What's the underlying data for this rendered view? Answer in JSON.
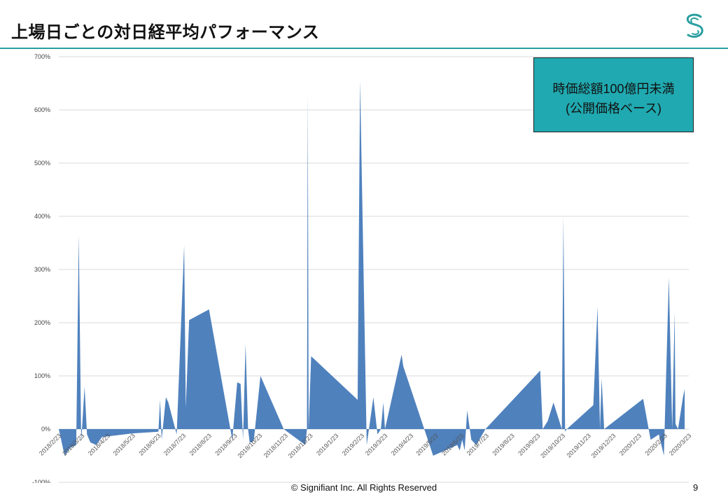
{
  "page": {
    "title": "上場日ごとの対日経平均パフォーマンス",
    "footer": "© Signifiant Inc. All Rights Reserved",
    "page_number": "9",
    "logo_icon": "signifiant-swirl-logo",
    "accent_color": "#2a9ea0"
  },
  "annotation": {
    "line1": "時価総額100億円未満",
    "line2": "(公開価格ベース)",
    "color": "#20a9b0"
  },
  "chart_data": {
    "type": "area",
    "title": "",
    "xlabel": "",
    "ylabel": "",
    "fill_color": "#4f81bd",
    "grid": true,
    "ylim": [
      -100,
      700
    ],
    "yticks": [
      -100,
      0,
      100,
      200,
      300,
      400,
      500,
      600,
      700
    ],
    "ytick_labels": [
      "-100%",
      "0%",
      "100%",
      "200%",
      "300%",
      "400%",
      "500%",
      "600%",
      "700%"
    ],
    "xlim": [
      "2018-02-23",
      "2020-03-23"
    ],
    "xtick_dates": [
      "2018-02-23",
      "2018-03-23",
      "2018-04-23",
      "2018-05-23",
      "2018-06-23",
      "2018-07-23",
      "2018-08-23",
      "2018-09-23",
      "2018-10-23",
      "2018-11-23",
      "2018-12-23",
      "2019-01-23",
      "2019-02-23",
      "2019-03-23",
      "2019-04-23",
      "2019-05-23",
      "2019-06-23",
      "2019-07-23",
      "2019-08-23",
      "2019-09-23",
      "2019-10-23",
      "2019-11-23",
      "2019-12-23",
      "2020-01-23",
      "2020-02-23",
      "2020-03-23"
    ],
    "xtick_labels": [
      "2018/2/23",
      "2018/3/23",
      "2018/4/23",
      "2018/5/23",
      "2018/6/23",
      "2018/7/23",
      "2018/8/23",
      "2018/9/23",
      "2018/10/23",
      "2018/11/23",
      "2018/12/23",
      "2019/1/23",
      "2019/2/23",
      "2019/3/23",
      "2019/4/23",
      "2019/5/23",
      "2019/6/23",
      "2019/7/23",
      "2019/8/23",
      "2019/9/23",
      "2019/10/23",
      "2019/11/23",
      "2019/12/23",
      "2020/1/23",
      "2020/2/23",
      "2020/3/23"
    ],
    "series": [
      {
        "x": [
          "2018-02-23",
          "2018-03-02",
          "2018-03-09",
          "2018-03-16",
          "2018-03-19",
          "2018-03-22",
          "2018-03-26",
          "2018-03-29",
          "2018-04-02",
          "2018-04-09",
          "2018-04-16",
          "2018-05-23",
          "2018-06-23",
          "2018-06-25",
          "2018-06-27",
          "2018-07-02",
          "2018-07-05",
          "2018-07-15",
          "2018-07-24",
          "2018-07-26",
          "2018-07-30",
          "2018-08-23",
          "2018-09-20",
          "2018-09-26",
          "2018-09-30",
          "2018-10-03",
          "2018-10-06",
          "2018-10-09",
          "2018-10-11",
          "2018-10-14",
          "2018-10-16",
          "2018-10-24",
          "2018-11-21",
          "2018-12-17",
          "2018-12-19",
          "2018-12-20",
          "2018-12-21",
          "2018-12-24",
          "2019-02-18",
          "2019-02-21",
          "2019-03-01",
          "2019-03-09",
          "2019-03-14",
          "2019-03-18",
          "2019-03-21",
          "2019-03-23",
          "2019-04-12",
          "2019-04-14",
          "2019-05-20",
          "2019-06-18",
          "2019-06-21",
          "2019-06-24",
          "2019-06-27",
          "2019-06-30",
          "2019-07-05",
          "2019-07-11",
          "2019-07-22",
          "2019-09-26",
          "2019-09-29",
          "2019-10-05",
          "2019-10-12",
          "2019-10-22",
          "2019-10-24",
          "2019-10-26",
          "2019-10-28",
          "2019-11-29",
          "2019-12-04",
          "2019-12-07",
          "2019-12-09",
          "2019-12-12",
          "2020-01-28",
          "2020-02-06",
          "2020-02-16",
          "2020-02-22",
          "2020-02-28",
          "2020-03-03",
          "2020-03-06",
          "2020-03-07",
          "2020-03-10",
          "2020-03-12",
          "2020-03-16",
          "2020-03-18"
        ],
        "values": [
          0,
          -50,
          -35,
          -30,
          365,
          -25,
          80,
          -10,
          -25,
          -30,
          -15,
          -8,
          -5,
          55,
          -20,
          60,
          50,
          -10,
          345,
          40,
          205,
          225,
          -20,
          88,
          85,
          -20,
          160,
          0,
          -25,
          -25,
          -20,
          100,
          0,
          -30,
          0,
          635,
          0,
          137,
          55,
          655,
          -30,
          60,
          -10,
          0,
          50,
          0,
          140,
          118,
          -50,
          -30,
          -40,
          -20,
          -40,
          35,
          -20,
          -30,
          0,
          110,
          0,
          15,
          50,
          0,
          400,
          -5,
          0,
          45,
          230,
          0,
          95,
          0,
          57,
          -20,
          -10,
          -50,
          285,
          0,
          220,
          10,
          0,
          20,
          60,
          75
        ]
      }
    ]
  }
}
